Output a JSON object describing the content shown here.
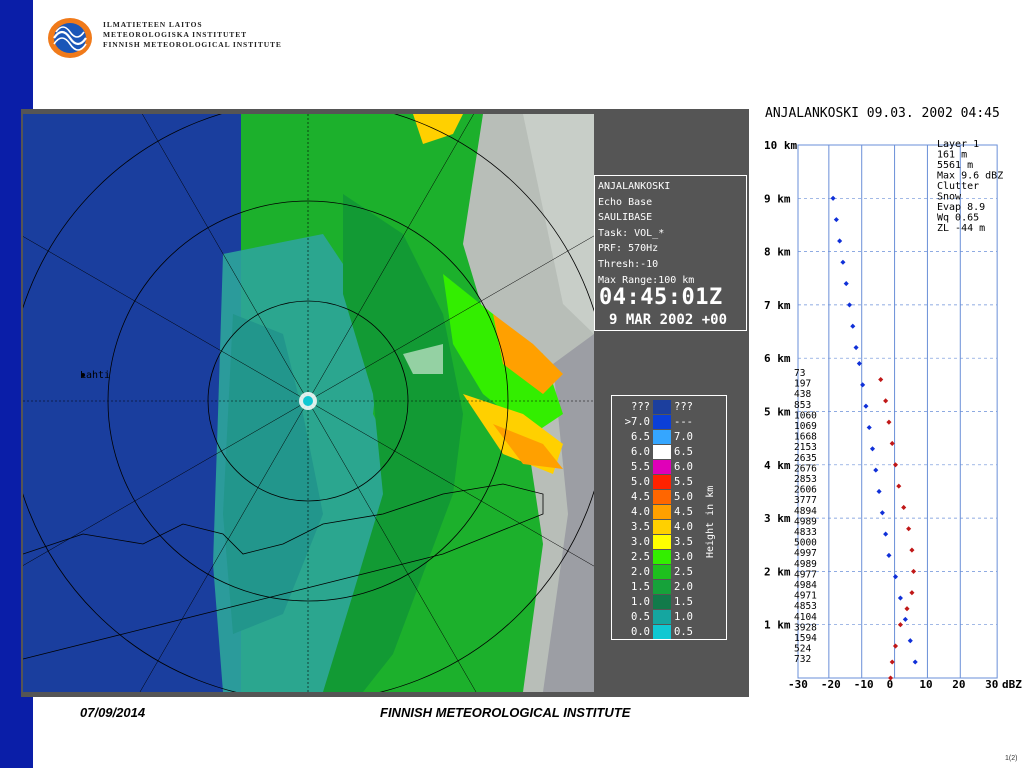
{
  "header": {
    "org_lines": [
      "ILMATIETEEN LAITOS",
      "METEOROLOGISKA INSTITUTET",
      "FINNISH METEOROLOGICAL INSTITUTE"
    ]
  },
  "radar": {
    "city_label": "Lahti",
    "info": {
      "lines": [
        "ANJALANKOSKI",
        "Echo Base",
        "SAULIBASE",
        "Task: VOL_*",
        "PRF: 570Hz",
        "Thresh:-10",
        "Max Range:100 km"
      ],
      "time": "04:45:01Z",
      "date": "9 MAR 2002 +00"
    },
    "legend": {
      "caption": "Height in km",
      "rows": [
        {
          "left": "???",
          "right": "???",
          "color": "#1c3f9e"
        },
        {
          "left": ">7.0",
          "right": "---",
          "color": "#0b3fd8"
        },
        {
          "left": "6.5",
          "right": "7.0",
          "color": "#35a6ff"
        },
        {
          "left": "6.0",
          "right": "6.5",
          "color": "#ffffff"
        },
        {
          "left": "5.5",
          "right": "6.0",
          "color": "#e000b8"
        },
        {
          "left": "5.0",
          "right": "5.5",
          "color": "#ff2200"
        },
        {
          "left": "4.5",
          "right": "5.0",
          "color": "#ff6600"
        },
        {
          "left": "4.0",
          "right": "4.5",
          "color": "#ffa000"
        },
        {
          "left": "3.5",
          "right": "4.0",
          "color": "#ffd000"
        },
        {
          "left": "3.0",
          "right": "3.5",
          "color": "#ffff00"
        },
        {
          "left": "2.5",
          "right": "3.0",
          "color": "#33ee00"
        },
        {
          "left": "2.0",
          "right": "2.5",
          "color": "#1ec01e"
        },
        {
          "left": "1.5",
          "right": "2.0",
          "color": "#16a23a"
        },
        {
          "left": "1.0",
          "right": "1.5",
          "color": "#127a4a"
        },
        {
          "left": "0.5",
          "right": "1.0",
          "color": "#15a6a0"
        },
        {
          "left": "0.0",
          "right": "0.5",
          "color": "#10c8d2"
        }
      ]
    },
    "colors": {
      "ocean": "#1a3e9e",
      "land_teal": "#2ea59a",
      "land_green": "#1ca83a",
      "no_echo": "#b8beb8",
      "grid": "#000000"
    }
  },
  "profile": {
    "title": "ANJALANKOSKI 09.03. 2002 04:45",
    "info_lines": [
      "Layer 1",
      "161 m",
      "5561 m",
      "Max 9.6 dBZ",
      "Clutter",
      "Snow",
      "Evap 8.9",
      "Wq 0.65",
      "ZL -44 m"
    ],
    "height_labels": [
      "1 km",
      "2 km",
      "3 km",
      "4 km",
      "5 km",
      "6 km",
      "7 km",
      "8 km",
      "9 km",
      "10 km"
    ],
    "dbz_labels": [
      "-30",
      "-20",
      "-10",
      "0",
      "10",
      "20",
      "30"
    ],
    "dbz_unit": "dBZ",
    "counts": [
      "73",
      "197",
      "438",
      "853",
      "1060",
      "1069",
      "1668",
      "2153",
      "2635",
      "2676",
      "2853",
      "2606",
      "3777",
      "4894",
      "4989",
      "4833",
      "5000",
      "4997",
      "4989",
      "4977",
      "4984",
      "4971",
      "4853",
      "4104",
      "3928",
      "1594",
      "524",
      "732"
    ],
    "blue_series": [
      [
        -17.5,
        9.0
      ],
      [
        -16.5,
        8.6
      ],
      [
        -15.5,
        8.2
      ],
      [
        -14.5,
        7.8
      ],
      [
        -13.5,
        7.4
      ],
      [
        -12.5,
        7.0
      ],
      [
        -11.5,
        6.6
      ],
      [
        -10.5,
        6.2
      ],
      [
        -9.5,
        5.9
      ],
      [
        -8.5,
        5.5
      ],
      [
        -7.5,
        5.1
      ],
      [
        -6.5,
        4.7
      ],
      [
        -5.5,
        4.3
      ],
      [
        -4.5,
        3.9
      ],
      [
        -3.5,
        3.5
      ],
      [
        -2.5,
        3.1
      ],
      [
        -1.5,
        2.7
      ],
      [
        -0.5,
        2.3
      ],
      [
        1.5,
        1.9
      ],
      [
        3.0,
        1.5
      ],
      [
        4.5,
        1.1
      ],
      [
        6.0,
        0.7
      ],
      [
        7.5,
        0.3
      ]
    ],
    "red_series": [
      [
        -3.0,
        5.6
      ],
      [
        -1.5,
        5.2
      ],
      [
        -0.5,
        4.8
      ],
      [
        0.5,
        4.4
      ],
      [
        1.5,
        4.0
      ],
      [
        2.5,
        3.6
      ],
      [
        4.0,
        3.2
      ],
      [
        5.5,
        2.8
      ],
      [
        6.5,
        2.4
      ],
      [
        7.0,
        2.0
      ],
      [
        6.5,
        1.6
      ],
      [
        5.0,
        1.3
      ],
      [
        3.0,
        1.0
      ],
      [
        1.5,
        0.6
      ],
      [
        0.5,
        0.3
      ],
      [
        0.0,
        0.0
      ]
    ]
  },
  "footer": {
    "date": "07/09/2014",
    "org": "FINNISH METEOROLOGICAL INSTITUTE",
    "page": "1(2)"
  }
}
